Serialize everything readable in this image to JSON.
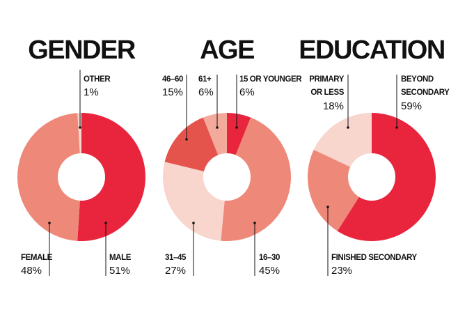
{
  "chart_data": [
    {
      "type": "pie",
      "title": "GENDER",
      "slices": [
        {
          "label": "MALE",
          "value": 51,
          "value_label": "51%",
          "color": "#e8253d"
        },
        {
          "label": "FEMALE",
          "value": 48,
          "value_label": "48%",
          "color": "#ee8879"
        },
        {
          "label": "OTHER",
          "value": 1,
          "value_label": "1%",
          "color": "#f8d5cd"
        }
      ]
    },
    {
      "type": "pie",
      "title": "AGE",
      "slices": [
        {
          "label": "15 OR YOUNGER",
          "value": 6,
          "value_label": "6%",
          "color": "#e8253d"
        },
        {
          "label": "16–30",
          "value": 45,
          "value_label": "45%",
          "color": "#ee8879"
        },
        {
          "label": "31–45",
          "value": 27,
          "value_label": "27%",
          "color": "#f8d5cd"
        },
        {
          "label": "46–60",
          "value": 15,
          "value_label": "15%",
          "color": "#e5534d"
        },
        {
          "label": "61+",
          "value": 6,
          "value_label": "6%",
          "color": "#f4aa9b"
        }
      ]
    },
    {
      "type": "pie",
      "title": "EDUCATION",
      "slices": [
        {
          "label": "BEYOND SECONDARY",
          "label_lines": [
            "BEYOND",
            "SECONDARY"
          ],
          "value": 59,
          "value_label": "59%",
          "color": "#e8253d"
        },
        {
          "label": "FINISHED SECONDARY",
          "value": 23,
          "value_label": "23%",
          "color": "#ee8879"
        },
        {
          "label": "PRIMARY OR LESS",
          "label_lines": [
            "PRIMARY",
            "OR LESS"
          ],
          "value": 18,
          "value_label": "18%",
          "color": "#f8d5cd"
        }
      ]
    }
  ]
}
